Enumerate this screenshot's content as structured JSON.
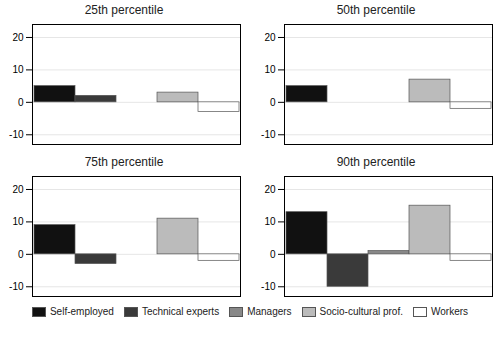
{
  "chart_data": [
    {
      "type": "bar",
      "title": "25th percentile",
      "categories": [
        "Self-employed",
        "Technical experts",
        "Managers",
        "Socio-cultural prof.",
        "Workers"
      ],
      "values": [
        5,
        2,
        0,
        3,
        -3
      ],
      "colors": [
        "#111111",
        "#3a3a3a",
        "#888888",
        "#bbbbbb",
        "#ffffff"
      ],
      "ylim": [
        -13,
        24
      ],
      "yticks": [
        -10,
        0,
        10,
        20
      ],
      "grid": true,
      "legend": "bottom",
      "tick_labels": "y"
    },
    {
      "type": "bar",
      "title": "50th percentile",
      "categories": [
        "Self-employed",
        "Technical experts",
        "Managers",
        "Socio-cultural prof.",
        "Workers"
      ],
      "values": [
        5,
        0,
        0,
        7,
        -2
      ],
      "colors": [
        "#111111",
        "#3a3a3a",
        "#888888",
        "#bbbbbb",
        "#ffffff"
      ],
      "ylim": [
        -13,
        24
      ],
      "yticks": [
        -10,
        0,
        10,
        20
      ],
      "grid": true,
      "legend": "bottom",
      "tick_labels": "y"
    },
    {
      "type": "bar",
      "title": "75th percentile",
      "categories": [
        "Self-employed",
        "Technical experts",
        "Managers",
        "Socio-cultural prof.",
        "Workers"
      ],
      "values": [
        9,
        -3,
        0,
        11,
        -2
      ],
      "colors": [
        "#111111",
        "#3a3a3a",
        "#888888",
        "#bbbbbb",
        "#ffffff"
      ],
      "ylim": [
        -13,
        24
      ],
      "yticks": [
        -10,
        0,
        10,
        20
      ],
      "grid": true,
      "legend": "bottom",
      "tick_labels": "y"
    },
    {
      "type": "bar",
      "title": "90th percentile",
      "categories": [
        "Self-employed",
        "Technical experts",
        "Managers",
        "Socio-cultural prof.",
        "Workers"
      ],
      "values": [
        13,
        -10,
        1,
        15,
        -2
      ],
      "colors": [
        "#111111",
        "#3a3a3a",
        "#888888",
        "#bbbbbb",
        "#ffffff"
      ],
      "ylim": [
        -13,
        24
      ],
      "yticks": [
        -10,
        0,
        10,
        20
      ],
      "grid": true,
      "legend": "bottom",
      "tick_labels": "y"
    }
  ]
}
